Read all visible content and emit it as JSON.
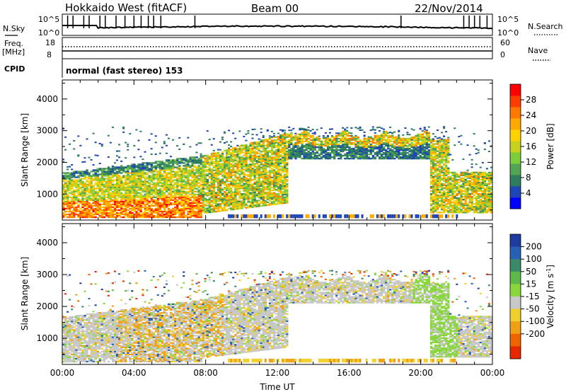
{
  "header": {
    "title": "Hokkaido West (fitACF)",
    "beam": "Beam 00",
    "date": "22/Nov/2014"
  },
  "top_panels": {
    "nsky_label": "N.Sky",
    "nsky_ticks": [
      "10^5",
      "10^0"
    ],
    "nsearch_label": "N.Search",
    "nsearch_ticks": [
      "10^5",
      "10^0"
    ],
    "freq_label": "Freq.",
    "freq_unit": "[MHz]",
    "freq_ticks": [
      "18",
      "8"
    ],
    "nave_label": "Nave",
    "nave_ticks": [
      "60",
      "0"
    ],
    "cpid_label": "CPID",
    "cpid_text": "normal (fast stereo) 153"
  },
  "chart_data": [
    {
      "type": "heatmap",
      "name": "power-panel",
      "xlabel": "",
      "ylabel": "Slant Range [km]",
      "x_range_hours": [
        0,
        24
      ],
      "ylim": [
        180,
        4600
      ],
      "yticks": [
        1000,
        2000,
        3000,
        4000
      ],
      "colorbar": {
        "label": "Power [dB]",
        "range": [
          0,
          32
        ],
        "ticks": [
          4,
          8,
          12,
          16,
          20,
          24,
          28
        ],
        "colors": [
          "#0000ff",
          "#1e46b4",
          "#2e7d5e",
          "#53a553",
          "#7ccd3c",
          "#c8d21e",
          "#ffd200",
          "#ffaa00",
          "#ff7800",
          "#ff3c00",
          "#ff0000"
        ]
      }
    },
    {
      "type": "heatmap",
      "name": "velocity-panel",
      "xlabel": "Time UT",
      "ylabel": "Slant Range [km]",
      "x_range_hours": [
        0,
        24
      ],
      "ylim": [
        180,
        4600
      ],
      "yticks": [
        1000,
        2000,
        3000,
        4000
      ],
      "xticks": [
        "00:00",
        "04:00",
        "08:00",
        "12:00",
        "16:00",
        "20:00",
        "00:00"
      ],
      "colorbar": {
        "label": "Velocity [m s",
        "label_sup": "-1",
        "label_end": "]",
        "ticks": [
          "200",
          "100",
          "50",
          "15",
          "-15",
          "-50",
          "-100",
          "-200"
        ],
        "colors": [
          "#1e3ca0",
          "#2860b4",
          "#3a8a6a",
          "#5cb848",
          "#88d83c",
          "#c8c8c8",
          "#f0d02c",
          "#f0a014",
          "#f06400",
          "#e62800"
        ]
      }
    }
  ]
}
